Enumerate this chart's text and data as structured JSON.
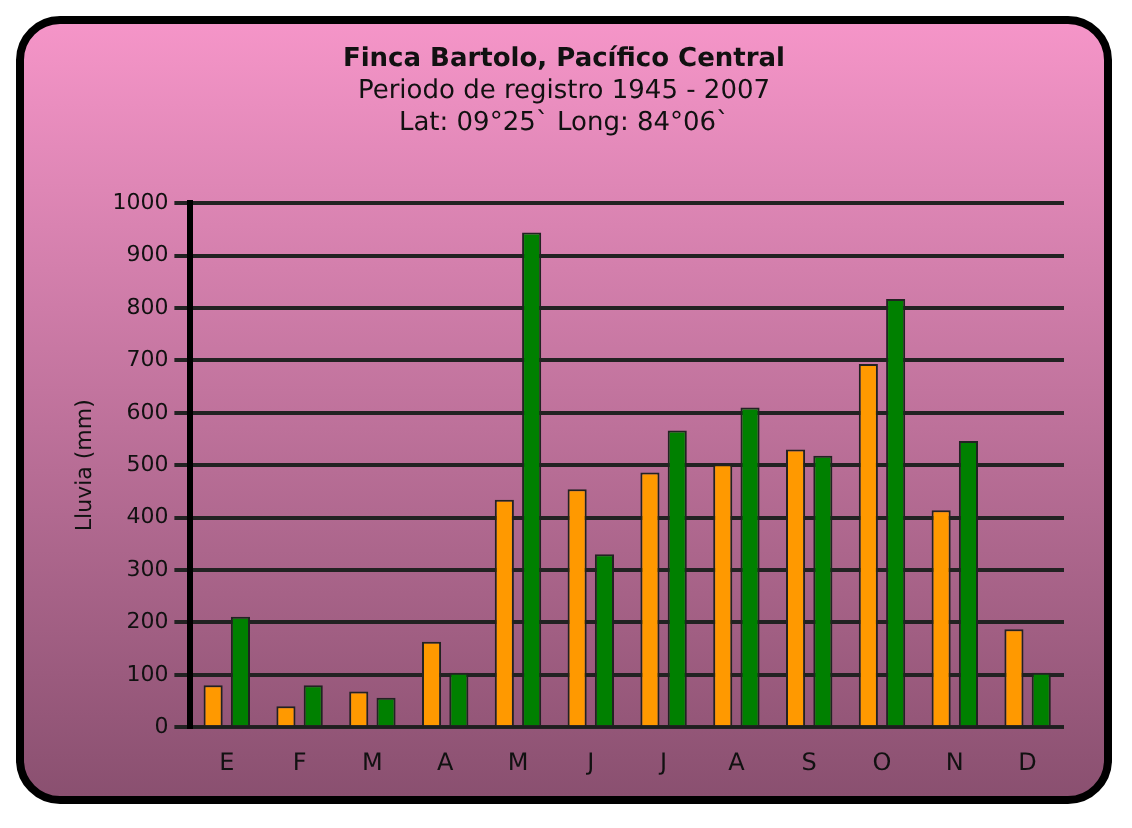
{
  "chart_data": {
    "type": "bar",
    "title": "Finca Bartolo, Pacífico Central",
    "subtitle": [
      "Periodo de registro 1945 - 2007",
      "Lat: 09°25` Long: 84°06`"
    ],
    "ylabel": "Lluvia (mm)",
    "categories": [
      "E",
      "F",
      "M",
      "A",
      "M",
      "J",
      "J",
      "A",
      "S",
      "O",
      "N",
      "D"
    ],
    "series": [
      {
        "color": "#ff9900",
        "values": [
          80,
          40,
          68,
          163,
          434,
          454,
          486,
          502,
          530,
          693,
          414,
          187
        ]
      },
      {
        "color": "#008000",
        "values": [
          211,
          80,
          56,
          104,
          944,
          330,
          566,
          610,
          518,
          817,
          546,
          104
        ]
      }
    ],
    "ylim": [
      0,
      1000
    ],
    "yticks": [
      0,
      100,
      200,
      300,
      400,
      500,
      600,
      700,
      800,
      900,
      1000
    ],
    "grid": "y",
    "legend": false
  }
}
